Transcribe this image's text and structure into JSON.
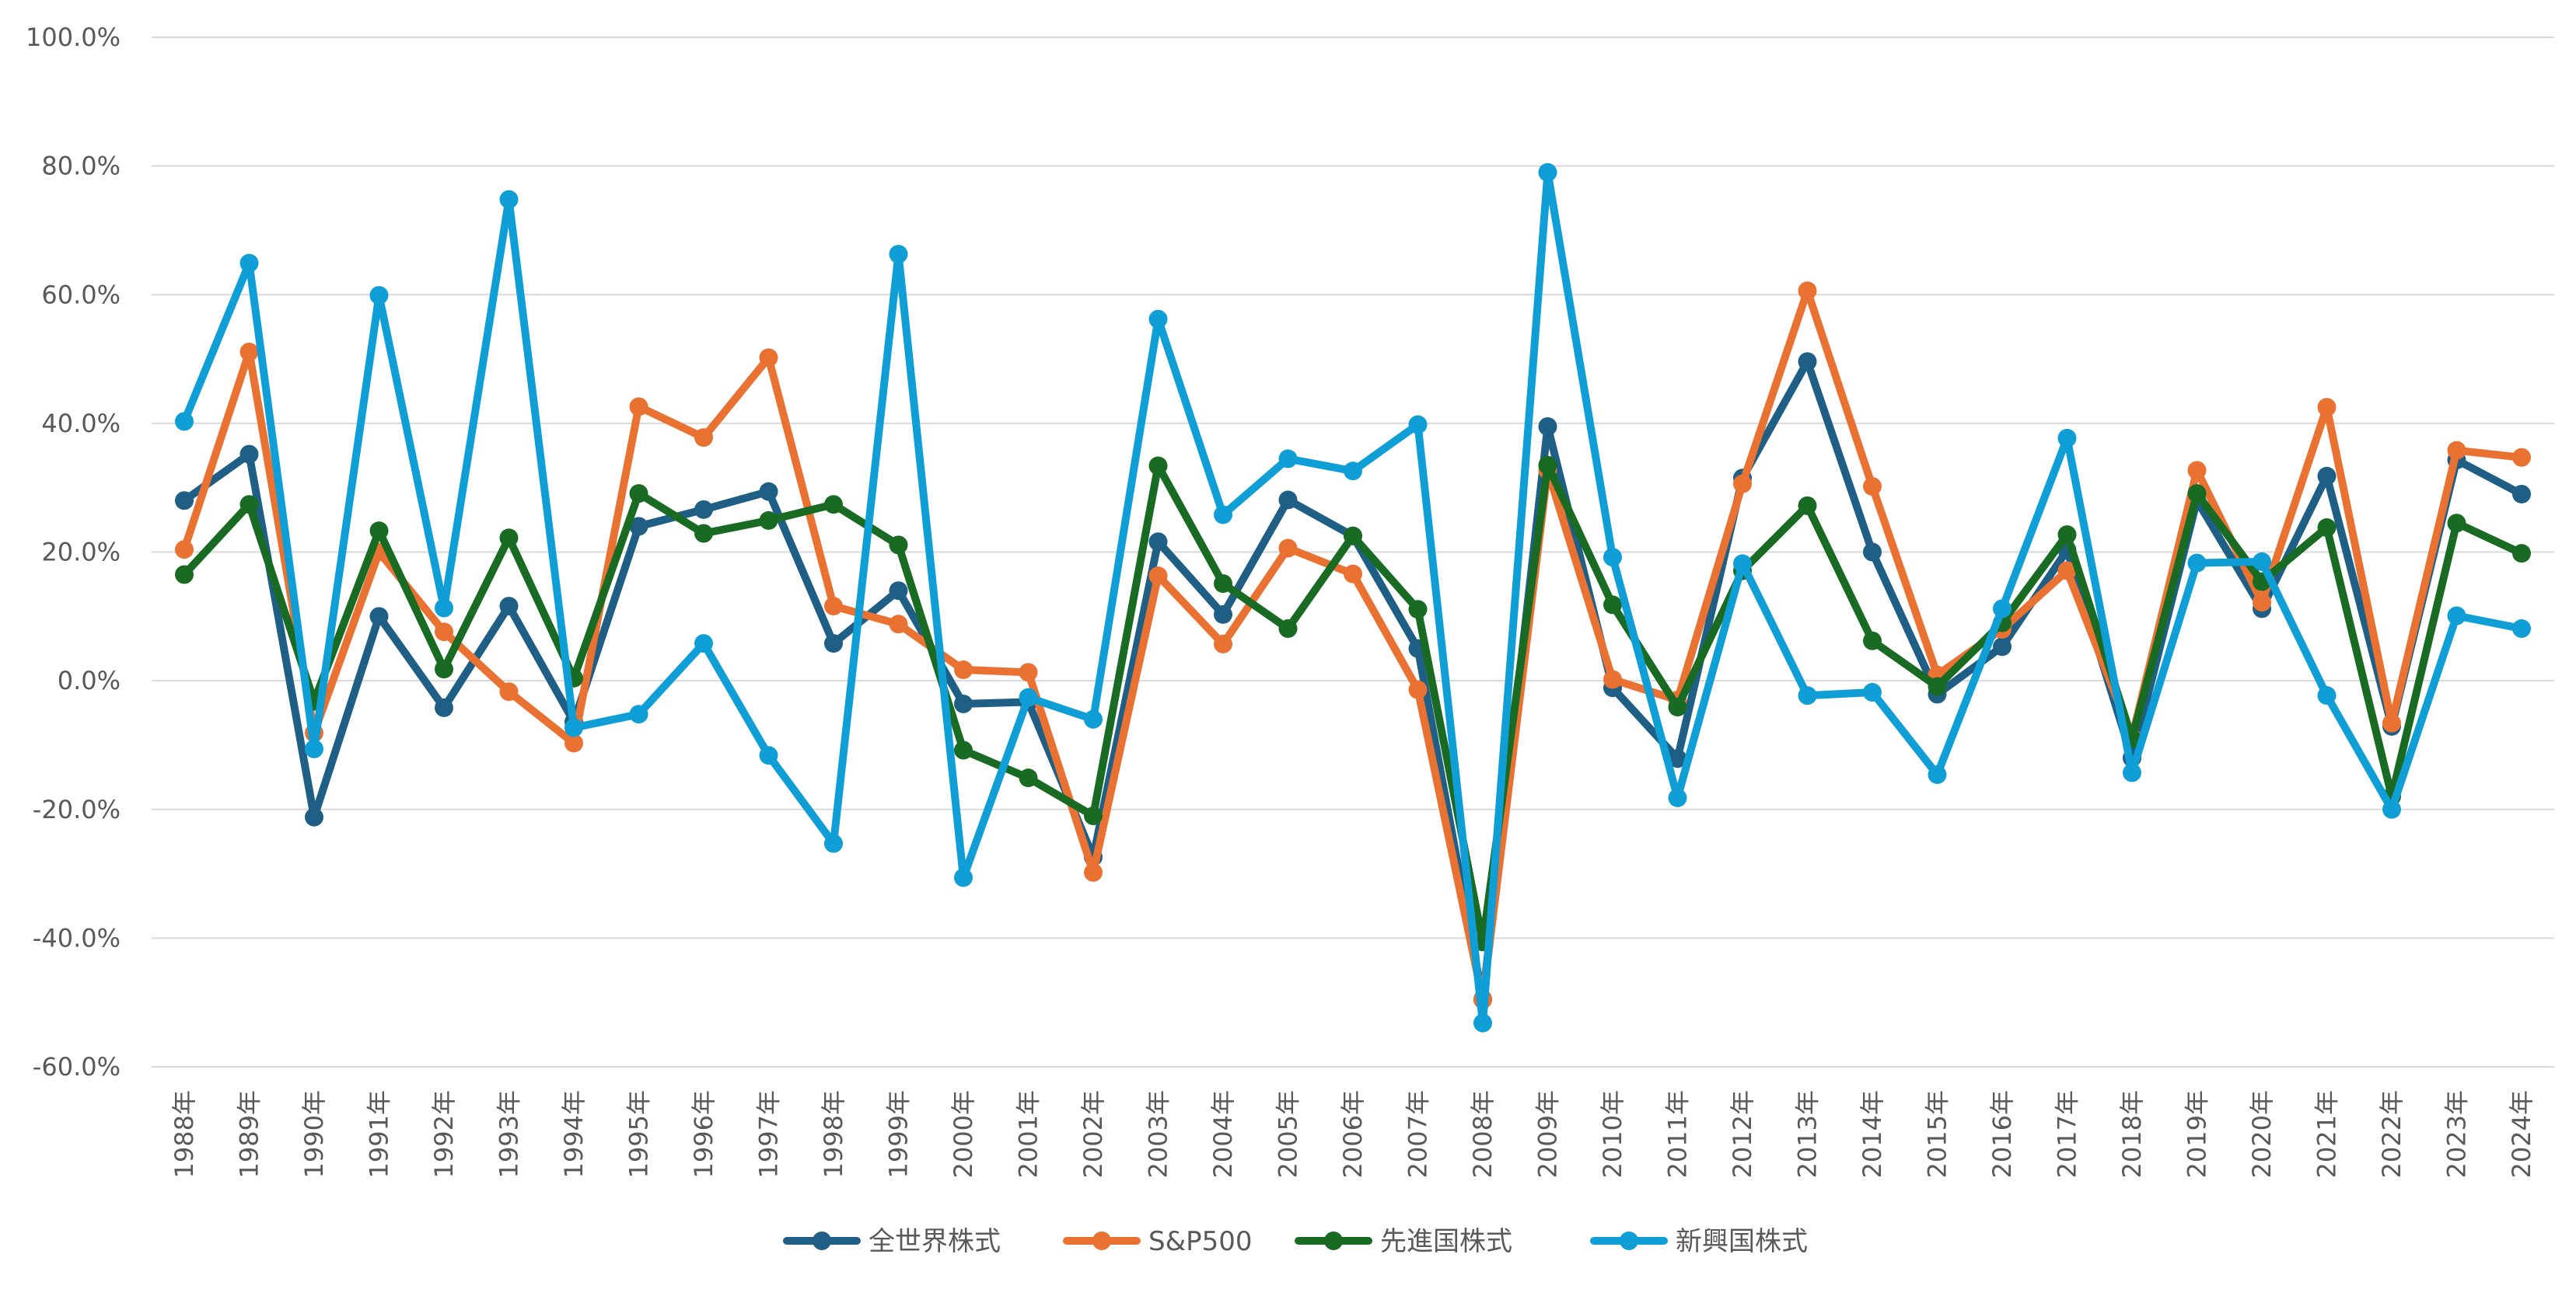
{
  "chart_data": {
    "type": "line",
    "title": "",
    "xlabel": "",
    "ylabel": "",
    "categories": [
      "1988年",
      "1989年",
      "1990年",
      "1991年",
      "1992年",
      "1993年",
      "1994年",
      "1995年",
      "1996年",
      "1997年",
      "1998年",
      "1999年",
      "2000年",
      "2001年",
      "2002年",
      "2003年",
      "2004年",
      "2005年",
      "2006年",
      "2007年",
      "2008年",
      "2009年",
      "2010年",
      "2011年",
      "2012年",
      "2013年",
      "2014年",
      "2015年",
      "2016年",
      "2017年",
      "2018年",
      "2019年",
      "2020年",
      "2021年",
      "2022年",
      "2023年",
      "2024年"
    ],
    "ylim": [
      -60,
      100
    ],
    "y_ticks": [
      -60,
      -40,
      -20,
      0,
      20,
      40,
      60,
      80,
      100
    ],
    "y_tick_labels": [
      "-60.0%",
      "-40.0%",
      "-20.0%",
      "0.0%",
      "20.0%",
      "40.0%",
      "60.0%",
      "80.0%",
      "100.0%"
    ],
    "grid": true,
    "legend_position": "bottom",
    "series": [
      {
        "name": "全世界株式",
        "color": "#1f5f86",
        "values": [
          28.0,
          35.2,
          -21.2,
          10.0,
          -4.2,
          11.6,
          -6.4,
          24.0,
          26.6,
          29.4,
          5.8,
          14.0,
          -3.6,
          -3.3,
          -27.4,
          21.6,
          10.3,
          28.1,
          22.5,
          5.0,
          -49.5,
          39.5,
          -1.1,
          -12.1,
          31.5,
          49.6,
          20.0,
          -2.1,
          5.3,
          20.3,
          -12.0,
          28.0,
          11.2,
          31.8,
          -7.1,
          34.3,
          29.0
        ]
      },
      {
        "name": "S&P500",
        "color": "#e97132",
        "values": [
          20.4,
          51.1,
          -8.1,
          20.0,
          7.6,
          -1.7,
          -9.7,
          42.6,
          37.8,
          50.2,
          11.6,
          8.8,
          1.7,
          1.3,
          -29.8,
          16.3,
          5.7,
          20.6,
          16.6,
          -1.4,
          -49.6,
          32.7,
          0.2,
          -3.0,
          30.6,
          60.6,
          30.2,
          0.9,
          8.0,
          17.1,
          -8.8,
          32.7,
          12.2,
          42.5,
          -6.6,
          35.8,
          34.7
        ]
      },
      {
        "name": "先進国株式",
        "color": "#196b24",
        "values": [
          16.5,
          27.4,
          -3.2,
          23.3,
          1.8,
          22.2,
          0.4,
          29.1,
          22.9,
          24.9,
          27.4,
          21.1,
          -10.8,
          -15.1,
          -21.0,
          33.4,
          15.1,
          8.1,
          22.5,
          11.1,
          -40.6,
          33.5,
          11.8,
          -4.1,
          17.1,
          27.2,
          6.2,
          -0.9,
          9.0,
          22.7,
          -9.0,
          29.1,
          15.4,
          23.8,
          -18.0,
          24.5,
          19.8
        ]
      },
      {
        "name": "新興国株式",
        "color": "#0f9ed5",
        "values": [
          40.3,
          64.9,
          -10.6,
          59.9,
          11.3,
          74.8,
          -7.3,
          -5.2,
          5.8,
          -11.6,
          -25.3,
          66.3,
          -30.6,
          -2.6,
          -6.0,
          56.2,
          25.8,
          34.5,
          32.6,
          39.8,
          -53.2,
          79.0,
          19.2,
          -18.2,
          18.2,
          -2.3,
          -1.8,
          -14.6,
          11.2,
          37.7,
          -14.3,
          18.3,
          18.5,
          -2.3,
          -20.0,
          10.1,
          8.1
        ]
      }
    ]
  }
}
